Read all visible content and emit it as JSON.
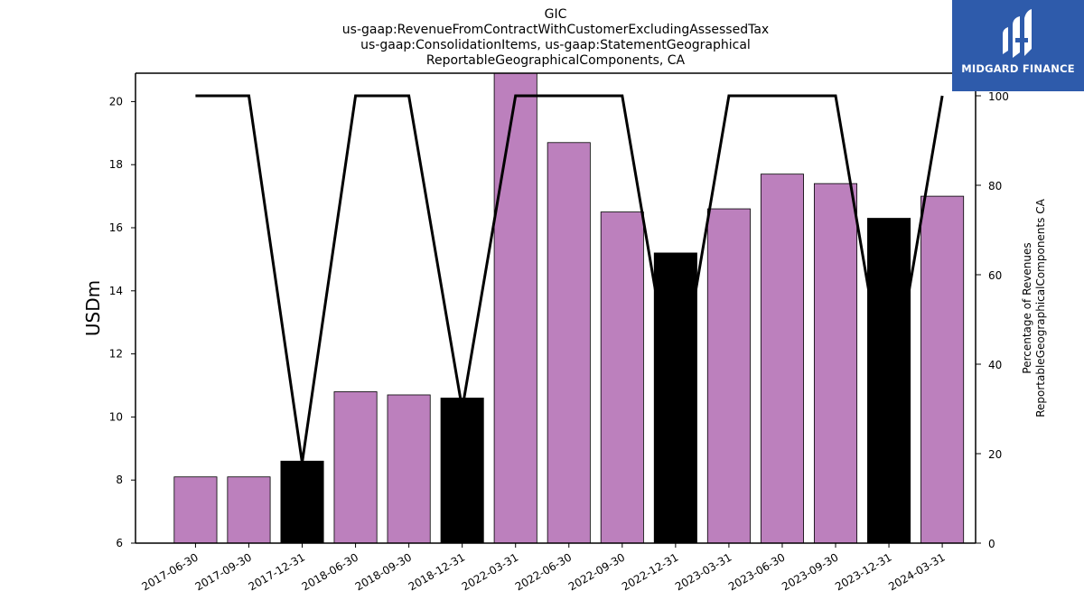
{
  "chart_data": {
    "type": "bar",
    "title": [
      "GIC",
      "us-gaap:RevenueFromContractWithCustomerExcludingAssessedTax",
      "us-gaap:ConsolidationItems, us-gaap:StatementGeographical",
      "ReportableGeographicalComponents, CA"
    ],
    "ylabel": "USDm",
    "y2label": [
      "Percentage of Revenues",
      "ReportableGeographicalComponents CA"
    ],
    "categories": [
      "2017-06-30",
      "2017-09-30",
      "2017-12-31",
      "2018-06-30",
      "2018-09-30",
      "2018-12-31",
      "2022-03-31",
      "2022-06-30",
      "2022-09-30",
      "2022-12-31",
      "2023-03-31",
      "2023-06-30",
      "2023-09-30",
      "2023-12-31",
      "2024-03-31"
    ],
    "series": [
      {
        "values": [
          8.1,
          8.1,
          8.6,
          10.8,
          10.7,
          10.6,
          20.9,
          18.7,
          16.5,
          15.2,
          16.6,
          17.7,
          17.4,
          16.3,
          17.0
        ],
        "colors": [
          "#bc80bd",
          "#bc80bd",
          "#000000",
          "#bc80bd",
          "#bc80bd",
          "#000000",
          "#bc80bd",
          "#bc80bd",
          "#bc80bd",
          "#000000",
          "#bc80bd",
          "#bc80bd",
          "#bc80bd",
          "#000000",
          "#bc80bd"
        ]
      },
      {
        "type": "line",
        "axis": "right",
        "color": "#000000",
        "values": [
          100,
          100,
          18,
          100,
          100,
          30,
          100,
          100,
          100,
          30,
          100,
          100,
          100,
          30,
          100
        ]
      }
    ],
    "ylim": [
      6,
      20.9
    ],
    "yticks": [
      6,
      8,
      10,
      12,
      14,
      16,
      18,
      20
    ],
    "y2lim": [
      0,
      100
    ],
    "y2ticks": [
      0,
      20,
      40,
      60,
      80,
      100
    ],
    "grid": false,
    "legend": "none"
  },
  "logo": {
    "text": "MIDGARD FINANCE"
  }
}
